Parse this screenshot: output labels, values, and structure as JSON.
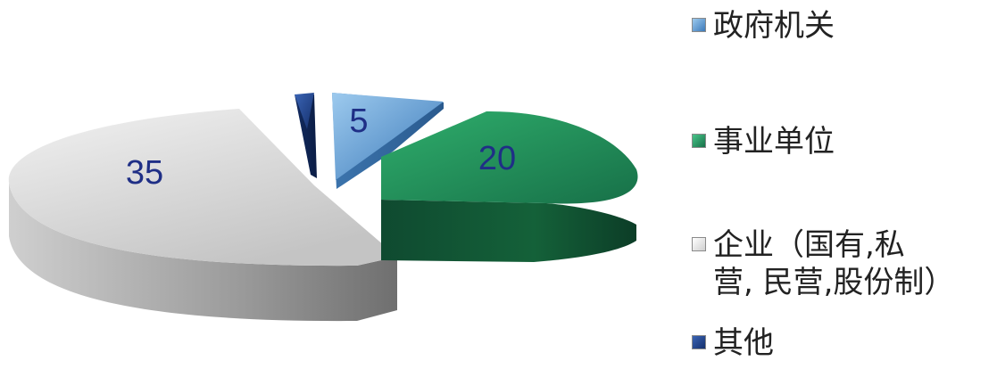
{
  "chart_data": {
    "type": "pie",
    "style": "3d-exploded",
    "categories": [
      "政府机关",
      "事业单位",
      "企业（国有,私营, 民营,股份制）",
      "其他"
    ],
    "values": [
      5,
      20,
      35,
      1
    ],
    "data_labels": [
      "5",
      "20",
      "35",
      ""
    ],
    "colors": [
      "#4a8fd0",
      "#1e9a5e",
      "#d8d8d8",
      "#1a3f87"
    ],
    "label_color": "#1f2f86",
    "legend": {
      "position": "right",
      "items": [
        {
          "label": "政府机关",
          "color": "#6fb2e6"
        },
        {
          "label": "事业单位",
          "color": "#2fae6c"
        },
        {
          "label": "企业（国有,私\n营, 民营,股份制）",
          "color": "#e8e8e8"
        },
        {
          "label": "其他",
          "color": "#1f4a9a"
        }
      ]
    }
  }
}
